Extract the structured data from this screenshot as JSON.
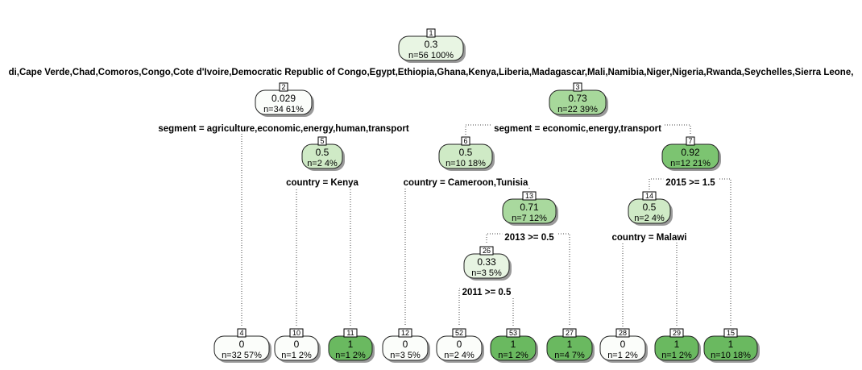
{
  "tree": {
    "nodes": [
      {
        "id": "1",
        "value": "0.3",
        "n": "n=56  100%",
        "fill": "#e8f5e3"
      },
      {
        "id": "2",
        "value": "0.029",
        "n": "n=34  61%",
        "fill": "#fbfdfa"
      },
      {
        "id": "3",
        "value": "0.73",
        "n": "n=22  39%",
        "fill": "#a7d89b"
      },
      {
        "id": "5",
        "value": "0.5",
        "n": "n=2  4%",
        "fill": "#cfeac6"
      },
      {
        "id": "6",
        "value": "0.5",
        "n": "n=10  18%",
        "fill": "#cfeac6"
      },
      {
        "id": "7",
        "value": "0.92",
        "n": "n=12  21%",
        "fill": "#7cc471"
      },
      {
        "id": "13",
        "value": "0.71",
        "n": "n=7  12%",
        "fill": "#a9d99e"
      },
      {
        "id": "14",
        "value": "0.5",
        "n": "n=2  4%",
        "fill": "#cfeac6"
      },
      {
        "id": "26",
        "value": "0.33",
        "n": "n=3  5%",
        "fill": "#e7f4e2"
      },
      {
        "id": "4",
        "value": "0",
        "n": "n=32  57%",
        "fill": "#fbfdfa"
      },
      {
        "id": "10",
        "value": "0",
        "n": "n=1  2%",
        "fill": "#fbfdfa"
      },
      {
        "id": "11",
        "value": "1",
        "n": "n=1  2%",
        "fill": "#6ab960"
      },
      {
        "id": "12",
        "value": "0",
        "n": "n=3  5%",
        "fill": "#fbfdfa"
      },
      {
        "id": "52",
        "value": "0",
        "n": "n=2  4%",
        "fill": "#fbfdfa"
      },
      {
        "id": "53",
        "value": "1",
        "n": "n=1  2%",
        "fill": "#6ab960"
      },
      {
        "id": "27",
        "value": "1",
        "n": "n=4  7%",
        "fill": "#6ab960"
      },
      {
        "id": "28",
        "value": "0",
        "n": "n=1  2%",
        "fill": "#fbfdfa"
      },
      {
        "id": "29",
        "value": "1",
        "n": "n=1  2%",
        "fill": "#6ab960"
      },
      {
        "id": "15",
        "value": "1",
        "n": "n=10  18%",
        "fill": "#6ab960"
      }
    ],
    "edges": [
      [
        "1",
        "2"
      ],
      [
        "1",
        "3"
      ],
      [
        "2",
        "4"
      ],
      [
        "2",
        "5"
      ],
      [
        "5",
        "10"
      ],
      [
        "5",
        "11"
      ],
      [
        "3",
        "6"
      ],
      [
        "3",
        "7"
      ],
      [
        "6",
        "12"
      ],
      [
        "6",
        "13"
      ],
      [
        "13",
        "26"
      ],
      [
        "13",
        "27"
      ],
      [
        "26",
        "52"
      ],
      [
        "26",
        "53"
      ],
      [
        "7",
        "14"
      ],
      [
        "7",
        "15"
      ],
      [
        "14",
        "28"
      ],
      [
        "14",
        "29"
      ]
    ],
    "splits": [
      {
        "node": "1",
        "label": "di,Cape Verde,Chad,Comoros,Congo,Cote d'Ivoire,Democratic Republic of Congo,Egypt,Ethiopia,Ghana,Kenya,Liberia,Madagascar,Mali,Namibia,Niger,Nigeria,Rwanda,Seychelles,Sierra Leone,"
      },
      {
        "node": "2",
        "label": "segment = agriculture,economic,energy,human,transport"
      },
      {
        "node": "3",
        "label": "segment = economic,energy,transport"
      },
      {
        "node": "5",
        "label": "country = Kenya"
      },
      {
        "node": "6",
        "label": "country = Cameroon,Tunisia"
      },
      {
        "node": "7",
        "label": "2015 >= 1.5"
      },
      {
        "node": "13",
        "label": "2013 >= 0.5"
      },
      {
        "node": "14",
        "label": "country = Malawi"
      },
      {
        "node": "26",
        "label": "2011 >= 0.5"
      }
    ]
  }
}
